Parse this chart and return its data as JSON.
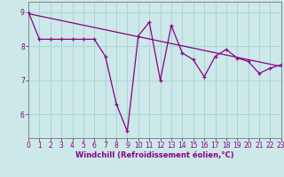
{
  "xlabel": "Windchill (Refroidissement éolien,°C)",
  "bg_color": "#cce8e8",
  "grid_color": "#aad4d4",
  "line_color": "#880088",
  "x_data": [
    0,
    1,
    2,
    3,
    4,
    5,
    6,
    7,
    8,
    9,
    10,
    11,
    12,
    13,
    14,
    15,
    16,
    17,
    18,
    19,
    20,
    21,
    22,
    23
  ],
  "y_data": [
    9.0,
    8.2,
    8.2,
    8.2,
    8.2,
    8.2,
    8.2,
    7.7,
    6.3,
    5.5,
    8.3,
    8.7,
    7.0,
    8.6,
    7.8,
    7.6,
    7.1,
    7.7,
    7.9,
    7.65,
    7.55,
    7.2,
    7.35,
    7.45
  ],
  "trend_x": [
    0,
    23
  ],
  "trend_y": [
    8.95,
    7.4
  ],
  "ylim": [
    5.3,
    9.3
  ],
  "xlim": [
    0,
    23
  ],
  "yticks": [
    6,
    7,
    8,
    9
  ],
  "xticks": [
    0,
    1,
    2,
    3,
    4,
    5,
    6,
    7,
    8,
    9,
    10,
    11,
    12,
    13,
    14,
    15,
    16,
    17,
    18,
    19,
    20,
    21,
    22,
    23
  ],
  "tick_fontsize": 5.5,
  "xlabel_fontsize": 6.0
}
